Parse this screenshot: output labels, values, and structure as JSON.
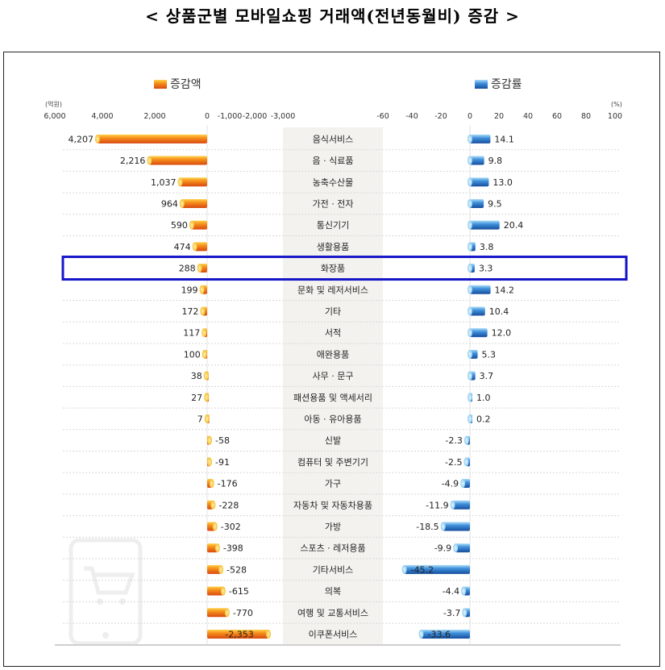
{
  "title": "< 상품군별 모바일쇼핑 거래액(전년동월비) 증감 >",
  "chart_data": {
    "type": "bar",
    "legend": [
      "증감액",
      "증감률"
    ],
    "left_axis": {
      "unit": "(억원)",
      "ticks": [
        "6,000",
        "4,000",
        "2,000",
        "0",
        "-1,000",
        "-2,000",
        "-3,000"
      ],
      "range": [
        6000,
        -3000
      ]
    },
    "right_axis": {
      "unit": "(%)",
      "ticks": [
        "-60",
        "-40",
        "-20",
        "0",
        "20",
        "40",
        "60",
        "80",
        "100"
      ],
      "range": [
        -60,
        100
      ]
    },
    "highlighted_category": "화장품",
    "colors": {
      "amount": "#f07a1a",
      "rate": "#2f7ad0",
      "highlight_box": "#1515c8"
    },
    "categories": [
      "음식서비스",
      "음 · 식료품",
      "농축수산물",
      "가전 · 전자",
      "통신기기",
      "생활용품",
      "화장품",
      "문화 및 레저서비스",
      "기타",
      "서적",
      "애완용품",
      "사무 · 문구",
      "패션용품 및 액세서리",
      "아동 · 유아용품",
      "신발",
      "컴퓨터 및 주변기기",
      "가구",
      "자동차 및 자동차용품",
      "가방",
      "스포츠 · 레저용품",
      "기타서비스",
      "의복",
      "여행 및 교통서비스",
      "이쿠폰서비스"
    ],
    "series": [
      {
        "name": "증감액",
        "values": [
          4207,
          2216,
          1037,
          964,
          590,
          474,
          288,
          199,
          172,
          117,
          100,
          38,
          27,
          7,
          -58,
          -91,
          -176,
          -228,
          -302,
          -398,
          -528,
          -615,
          -770,
          -2353
        ],
        "labels": [
          "4,207",
          "2,216",
          "1,037",
          "964",
          "590",
          "474",
          "288",
          "199",
          "172",
          "117",
          "100",
          "38",
          "27",
          "7",
          "-58",
          "-91",
          "-176",
          "-228",
          "-302",
          "-398",
          "-528",
          "-615",
          "-770",
          "-2,353"
        ]
      },
      {
        "name": "증감률",
        "values": [
          14.1,
          9.8,
          13.0,
          9.5,
          20.4,
          3.8,
          3.3,
          14.2,
          10.4,
          12.0,
          5.3,
          3.7,
          1.0,
          0.2,
          -2.3,
          -2.5,
          -4.9,
          -11.9,
          -18.5,
          -9.9,
          -45.2,
          -4.4,
          -3.7,
          -33.6
        ],
        "labels": [
          "14.1",
          "9.8",
          "13.0",
          "9.5",
          "20.4",
          "3.8",
          "3.3",
          "14.2",
          "10.4",
          "12.0",
          "5.3",
          "3.7",
          "1.0",
          "0.2",
          "-2.3",
          "-2.5",
          "-4.9",
          "-11.9",
          "-18.5",
          "-9.9",
          "-45.2",
          "-4.4",
          "-3.7",
          "-33.6"
        ]
      }
    ]
  }
}
